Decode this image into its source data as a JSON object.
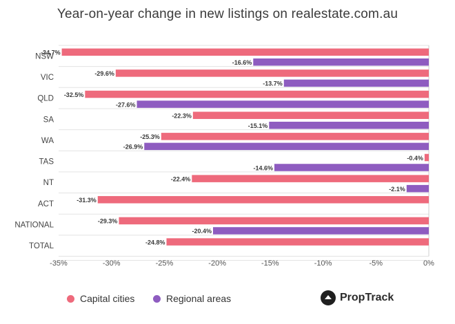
{
  "chart_data": {
    "type": "bar",
    "orientation": "horizontal",
    "title": "Year-on-year change in new listings on realestate.com.au",
    "categories": [
      "NSW",
      "VIC",
      "QLD",
      "SA",
      "WA",
      "TAS",
      "NT",
      "ACT",
      "NATIONAL",
      "TOTAL"
    ],
    "series": [
      {
        "name": "Capital cities",
        "color": "#ee6a7c",
        "values": [
          -34.7,
          -29.6,
          -32.5,
          -22.3,
          -25.3,
          -0.4,
          -22.4,
          -31.3,
          -29.3,
          -24.8
        ],
        "labels": [
          "-34.7%",
          "-29.6%",
          "-32.5%",
          "-22.3%",
          "-25.3%",
          "-0.4%",
          "-22.4%",
          "-31.3%",
          "-29.3%",
          "-24.8%"
        ]
      },
      {
        "name": "Regional areas",
        "color": "#8e5cc0",
        "values": [
          -16.6,
          -13.7,
          -27.6,
          -15.1,
          -26.9,
          -14.6,
          -2.1,
          null,
          -20.4,
          null
        ],
        "labels": [
          "-16.6%",
          "-13.7%",
          "-27.6%",
          "-15.1%",
          "-26.9%",
          "-14.6%",
          "-2.1%",
          "",
          "-20.4%",
          ""
        ]
      }
    ],
    "xlim": [
      -35,
      0
    ],
    "xticks": [
      -35,
      -30,
      -25,
      -20,
      -15,
      -10,
      -5,
      0
    ],
    "xtick_labels": [
      "-35%",
      "-30%",
      "-25%",
      "-20%",
      "-15%",
      "-10%",
      "-5%",
      "0%"
    ],
    "legend_position": "bottom-left",
    "grid": false
  },
  "brand": {
    "name": "PropTrack",
    "icon": "proptrack-logo-icon"
  }
}
